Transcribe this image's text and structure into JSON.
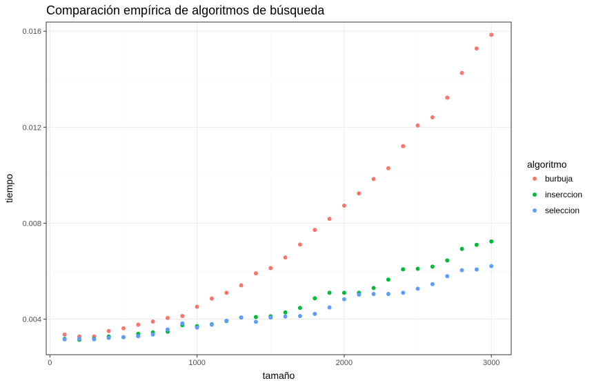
{
  "chart_data": {
    "type": "scatter",
    "title": "Comparación empírica de algoritmos de búsqueda",
    "xlabel": "tamaño",
    "ylabel": "tiempo",
    "xlim": [
      -25,
      3135
    ],
    "ylim": [
      0.00252,
      0.01638
    ],
    "x_ticks": [
      0,
      1000,
      2000,
      3000
    ],
    "x_tick_labels": [
      "0",
      "1000",
      "2000",
      "3000"
    ],
    "y_ticks": [
      0.004,
      0.008,
      0.012,
      0.016
    ],
    "y_tick_labels": [
      "0.004",
      "0.008",
      "0.012",
      "0.016"
    ],
    "grid": true,
    "legend": {
      "title": "algoritmo",
      "position": "right"
    },
    "x": [
      100,
      200,
      300,
      400,
      500,
      600,
      700,
      800,
      900,
      1000,
      1100,
      1200,
      1300,
      1400,
      1500,
      1600,
      1700,
      1800,
      1900,
      2000,
      2100,
      2200,
      2300,
      2400,
      2500,
      2600,
      2700,
      2800,
      2900,
      3000
    ],
    "series": [
      {
        "name": "burbuja",
        "color": "#F8766D",
        "values": [
          0.00336,
          0.00328,
          0.00328,
          0.00351,
          0.00362,
          0.00377,
          0.0039,
          0.00405,
          0.00413,
          0.00452,
          0.00486,
          0.0051,
          0.00541,
          0.00591,
          0.00613,
          0.00657,
          0.00711,
          0.00772,
          0.00818,
          0.00873,
          0.00924,
          0.00984,
          0.01029,
          0.01121,
          0.01207,
          0.01241,
          0.01323,
          0.01426,
          0.01528,
          0.01585
        ]
      },
      {
        "name": "inserccion",
        "color": "#00BA38",
        "values": [
          0.00318,
          0.00314,
          0.00318,
          0.00328,
          0.00325,
          0.00339,
          0.00345,
          0.00348,
          0.00375,
          0.00371,
          0.00379,
          0.00392,
          0.00407,
          0.00409,
          0.00412,
          0.00428,
          0.00447,
          0.00487,
          0.0051,
          0.0051,
          0.0051,
          0.0053,
          0.00565,
          0.00608,
          0.0061,
          0.00619,
          0.00645,
          0.00693,
          0.0071,
          0.00724
        ]
      },
      {
        "name": "seleccion",
        "color": "#619CFF",
        "values": [
          0.00316,
          0.00318,
          0.00316,
          0.00322,
          0.00325,
          0.00329,
          0.00336,
          0.00357,
          0.00382,
          0.00365,
          0.00377,
          0.00394,
          0.00407,
          0.00389,
          0.00407,
          0.00411,
          0.00413,
          0.00422,
          0.00449,
          0.00483,
          0.00502,
          0.00505,
          0.00505,
          0.0051,
          0.00527,
          0.00546,
          0.00579,
          0.00604,
          0.00607,
          0.00621
        ]
      }
    ]
  }
}
